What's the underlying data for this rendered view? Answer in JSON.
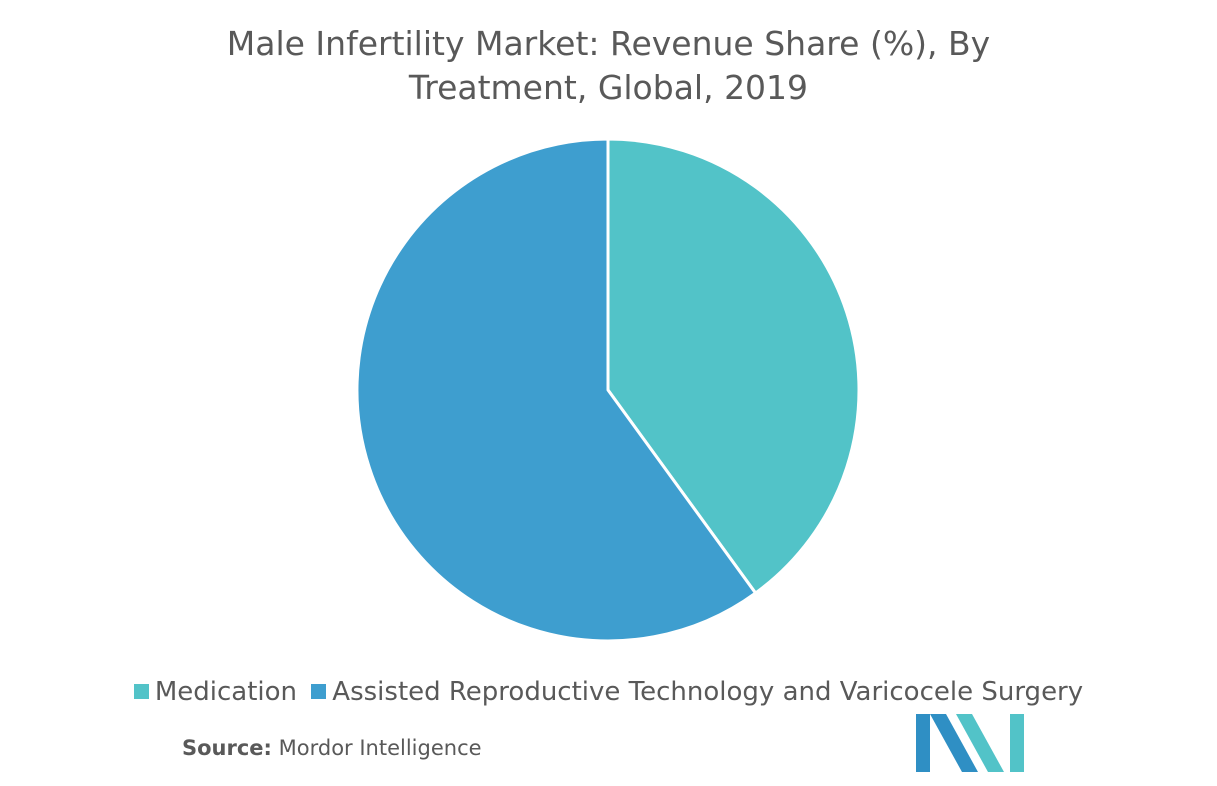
{
  "chart_data": {
    "type": "pie",
    "title": "Male Infertility Market: Revenue Share (%), By Treatment, Global, 2019",
    "title_lines": [
      "Male Infertility Market: Revenue Share (%), By",
      "Treatment, Global, 2019"
    ],
    "categories": [
      "Medication",
      "Assisted Reproductive Technology and Varicocele Surgery"
    ],
    "values": [
      40,
      60
    ],
    "colors": [
      "#52c3c8",
      "#3e9ecf"
    ],
    "start_angle_deg": 0,
    "direction": "clockwise",
    "legend_position": "bottom",
    "data_labels": false
  },
  "source": {
    "label": "Source:",
    "text": "Mordor Intelligence"
  },
  "logo": {
    "icon": "mordor-intelligence-logo",
    "colors": [
      "#2f8fc4",
      "#52c3c8"
    ]
  }
}
